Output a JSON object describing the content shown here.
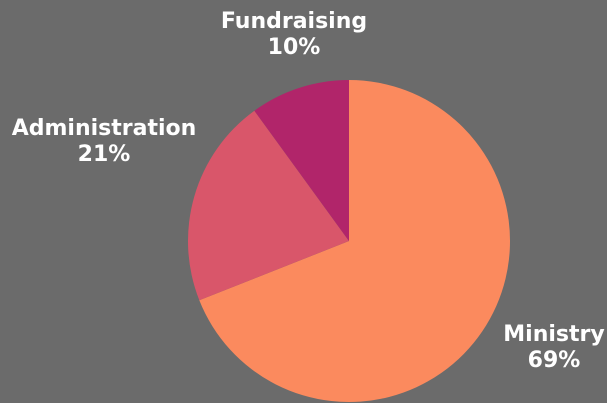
{
  "chart_data": {
    "type": "pie",
    "title": "",
    "slices": [
      {
        "label": "Ministry",
        "value": 69,
        "value_label": "69%",
        "color": "#fb8a5e"
      },
      {
        "label": "Administration",
        "value": 21,
        "value_label": "21%",
        "color": "#d9566a"
      },
      {
        "label": "Fundraising",
        "value": 10,
        "value_label": "10%",
        "color": "#b1256a"
      }
    ],
    "start_angle": "12 o'clock",
    "direction": "clockwise",
    "legend": "none"
  }
}
